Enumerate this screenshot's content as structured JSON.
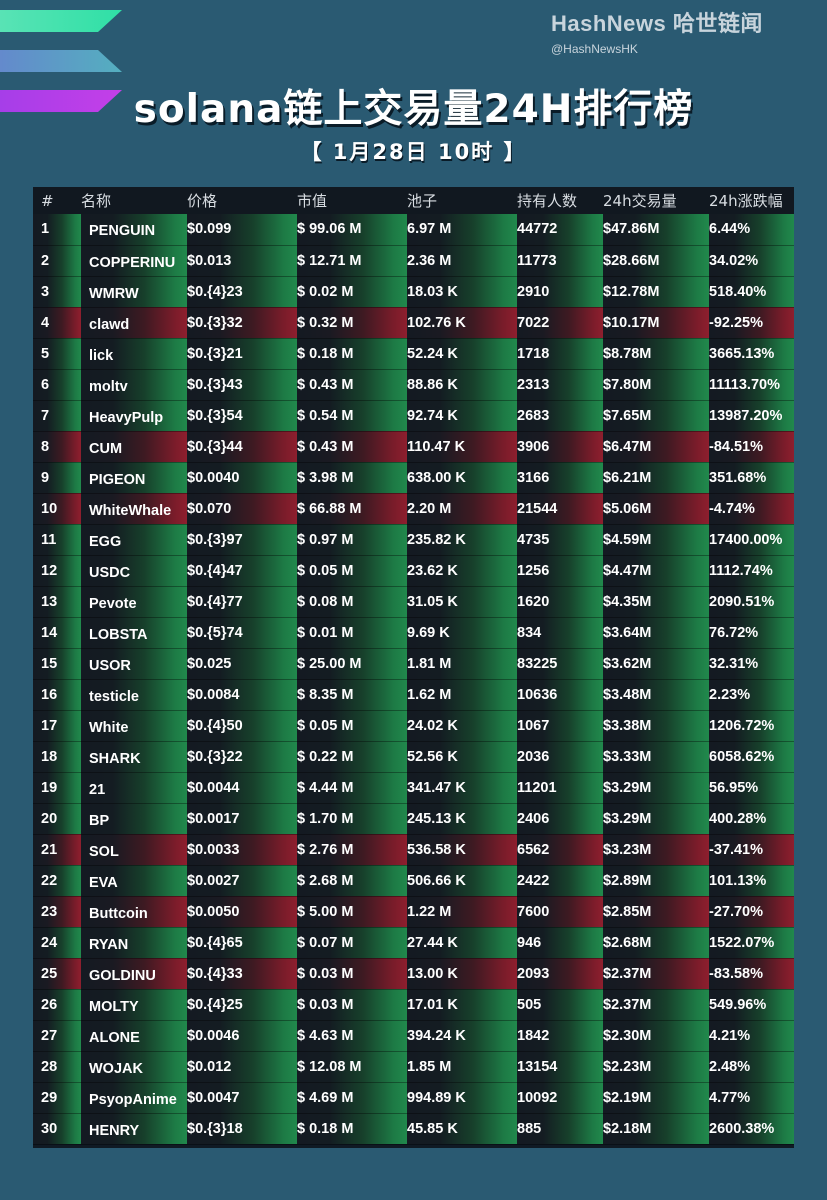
{
  "brand": {
    "name": "HashNews 哈世链闻",
    "handle": "@HashNewsHK"
  },
  "title": "solana链上交易量24H排行榜",
  "subtitle": "【 1月28日 10时 】",
  "colors": {
    "background": "#2a5a72",
    "up": "#21894c",
    "down": "#8e1f2e",
    "table_bg": "#101a24"
  },
  "icons": {
    "logo": "solana-logo-icon"
  },
  "columns": [
    "#",
    "名称",
    "价格",
    "市值",
    "池子",
    "持有人数",
    "24h交易量",
    "24h涨跌幅"
  ],
  "rows": [
    {
      "rank": "1",
      "name": "PENGUIN",
      "price": "$0.099",
      "mcap": "$ 99.06 M",
      "pool": "6.97 M",
      "holders": "44772",
      "volume": "$47.86M",
      "change": "6.44%",
      "dir": "up"
    },
    {
      "rank": "2",
      "name": "COPPERINU",
      "price": "$0.013",
      "mcap": "$ 12.71 M",
      "pool": "2.36 M",
      "holders": "11773",
      "volume": "$28.66M",
      "change": "34.02%",
      "dir": "up"
    },
    {
      "rank": "3",
      "name": "WMRW",
      "price": "$0.{4}23",
      "mcap": "$ 0.02 M",
      "pool": "18.03 K",
      "holders": "2910",
      "volume": "$12.78M",
      "change": "518.40%",
      "dir": "up"
    },
    {
      "rank": "4",
      "name": "clawd",
      "price": "$0.{3}32",
      "mcap": "$ 0.32 M",
      "pool": "102.76 K",
      "holders": "7022",
      "volume": "$10.17M",
      "change": "-92.25%",
      "dir": "down"
    },
    {
      "rank": "5",
      "name": "lick",
      "price": "$0.{3}21",
      "mcap": "$ 0.18 M",
      "pool": "52.24 K",
      "holders": "1718",
      "volume": "$8.78M",
      "change": "3665.13%",
      "dir": "up"
    },
    {
      "rank": "6",
      "name": "moltv",
      "price": "$0.{3}43",
      "mcap": "$ 0.43 M",
      "pool": "88.86 K",
      "holders": "2313",
      "volume": "$7.80M",
      "change": "11113.70%",
      "dir": "up"
    },
    {
      "rank": "7",
      "name": "HeavyPulp",
      "price": "$0.{3}54",
      "mcap": "$ 0.54 M",
      "pool": "92.74 K",
      "holders": "2683",
      "volume": "$7.65M",
      "change": "13987.20%",
      "dir": "up"
    },
    {
      "rank": "8",
      "name": "CUM",
      "price": "$0.{3}44",
      "mcap": "$ 0.43 M",
      "pool": "110.47 K",
      "holders": "3906",
      "volume": "$6.47M",
      "change": "-84.51%",
      "dir": "down"
    },
    {
      "rank": "9",
      "name": "PIGEON",
      "price": "$0.0040",
      "mcap": "$ 3.98 M",
      "pool": "638.00 K",
      "holders": "3166",
      "volume": "$6.21M",
      "change": "351.68%",
      "dir": "up"
    },
    {
      "rank": "10",
      "name": "WhiteWhale",
      "price": "$0.070",
      "mcap": "$ 66.88 M",
      "pool": "2.20 M",
      "holders": "21544",
      "volume": "$5.06M",
      "change": "-4.74%",
      "dir": "down"
    },
    {
      "rank": "11",
      "name": "EGG",
      "price": "$0.{3}97",
      "mcap": "$ 0.97 M",
      "pool": "235.82 K",
      "holders": "4735",
      "volume": "$4.59M",
      "change": "17400.00%",
      "dir": "up"
    },
    {
      "rank": "12",
      "name": "USDC",
      "price": "$0.{4}47",
      "mcap": "$ 0.05 M",
      "pool": "23.62 K",
      "holders": "1256",
      "volume": "$4.47M",
      "change": "1112.74%",
      "dir": "up"
    },
    {
      "rank": "13",
      "name": "Pevote",
      "price": "$0.{4}77",
      "mcap": "$ 0.08 M",
      "pool": "31.05 K",
      "holders": "1620",
      "volume": "$4.35M",
      "change": "2090.51%",
      "dir": "up"
    },
    {
      "rank": "14",
      "name": "LOBSTA",
      "price": "$0.{5}74",
      "mcap": "$ 0.01 M",
      "pool": "9.69 K",
      "holders": "834",
      "volume": "$3.64M",
      "change": "76.72%",
      "dir": "up"
    },
    {
      "rank": "15",
      "name": "USOR",
      "price": "$0.025",
      "mcap": "$ 25.00 M",
      "pool": "1.81 M",
      "holders": "83225",
      "volume": "$3.62M",
      "change": "32.31%",
      "dir": "up"
    },
    {
      "rank": "16",
      "name": "testicle",
      "price": "$0.0084",
      "mcap": "$ 8.35 M",
      "pool": "1.62 M",
      "holders": "10636",
      "volume": "$3.48M",
      "change": "2.23%",
      "dir": "up"
    },
    {
      "rank": "17",
      "name": "White",
      "price": "$0.{4}50",
      "mcap": "$ 0.05 M",
      "pool": "24.02 K",
      "holders": "1067",
      "volume": "$3.38M",
      "change": "1206.72%",
      "dir": "up"
    },
    {
      "rank": "18",
      "name": "SHARK",
      "price": "$0.{3}22",
      "mcap": "$ 0.22 M",
      "pool": "52.56 K",
      "holders": "2036",
      "volume": "$3.33M",
      "change": "6058.62%",
      "dir": "up"
    },
    {
      "rank": "19",
      "name": "21",
      "price": "$0.0044",
      "mcap": "$ 4.44 M",
      "pool": "341.47 K",
      "holders": "11201",
      "volume": "$3.29M",
      "change": "56.95%",
      "dir": "up"
    },
    {
      "rank": "20",
      "name": "BP",
      "price": "$0.0017",
      "mcap": "$ 1.70 M",
      "pool": "245.13 K",
      "holders": "2406",
      "volume": "$3.29M",
      "change": "400.28%",
      "dir": "up"
    },
    {
      "rank": "21",
      "name": "SOL",
      "price": "$0.0033",
      "mcap": "$ 2.76 M",
      "pool": "536.58 K",
      "holders": "6562",
      "volume": "$3.23M",
      "change": "-37.41%",
      "dir": "down"
    },
    {
      "rank": "22",
      "name": "EVA",
      "price": "$0.0027",
      "mcap": "$ 2.68 M",
      "pool": "506.66 K",
      "holders": "2422",
      "volume": "$2.89M",
      "change": "101.13%",
      "dir": "up"
    },
    {
      "rank": "23",
      "name": "Buttcoin",
      "price": "$0.0050",
      "mcap": "$ 5.00 M",
      "pool": "1.22 M",
      "holders": "7600",
      "volume": "$2.85M",
      "change": "-27.70%",
      "dir": "down"
    },
    {
      "rank": "24",
      "name": "RYAN",
      "price": "$0.{4}65",
      "mcap": "$ 0.07 M",
      "pool": "27.44 K",
      "holders": "946",
      "volume": "$2.68M",
      "change": "1522.07%",
      "dir": "up"
    },
    {
      "rank": "25",
      "name": "GOLDINU",
      "price": "$0.{4}33",
      "mcap": "$ 0.03 M",
      "pool": "13.00 K",
      "holders": "2093",
      "volume": "$2.37M",
      "change": "-83.58%",
      "dir": "down"
    },
    {
      "rank": "26",
      "name": "MOLTY",
      "price": "$0.{4}25",
      "mcap": "$ 0.03 M",
      "pool": "17.01 K",
      "holders": "505",
      "volume": "$2.37M",
      "change": "549.96%",
      "dir": "up"
    },
    {
      "rank": "27",
      "name": "ALONE",
      "price": "$0.0046",
      "mcap": "$ 4.63 M",
      "pool": "394.24 K",
      "holders": "1842",
      "volume": "$2.30M",
      "change": "4.21%",
      "dir": "up"
    },
    {
      "rank": "28",
      "name": "WOJAK",
      "price": "$0.012",
      "mcap": "$ 12.08 M",
      "pool": "1.85 M",
      "holders": "13154",
      "volume": "$2.23M",
      "change": "2.48%",
      "dir": "up"
    },
    {
      "rank": "29",
      "name": "PsyopAnime",
      "price": "$0.0047",
      "mcap": "$ 4.69 M",
      "pool": "994.89 K",
      "holders": "10092",
      "volume": "$2.19M",
      "change": "4.77%",
      "dir": "up"
    },
    {
      "rank": "30",
      "name": "HENRY",
      "price": "$0.{3}18",
      "mcap": "$ 0.18 M",
      "pool": "45.85 K",
      "holders": "885",
      "volume": "$2.18M",
      "change": "2600.38%",
      "dir": "up"
    }
  ]
}
